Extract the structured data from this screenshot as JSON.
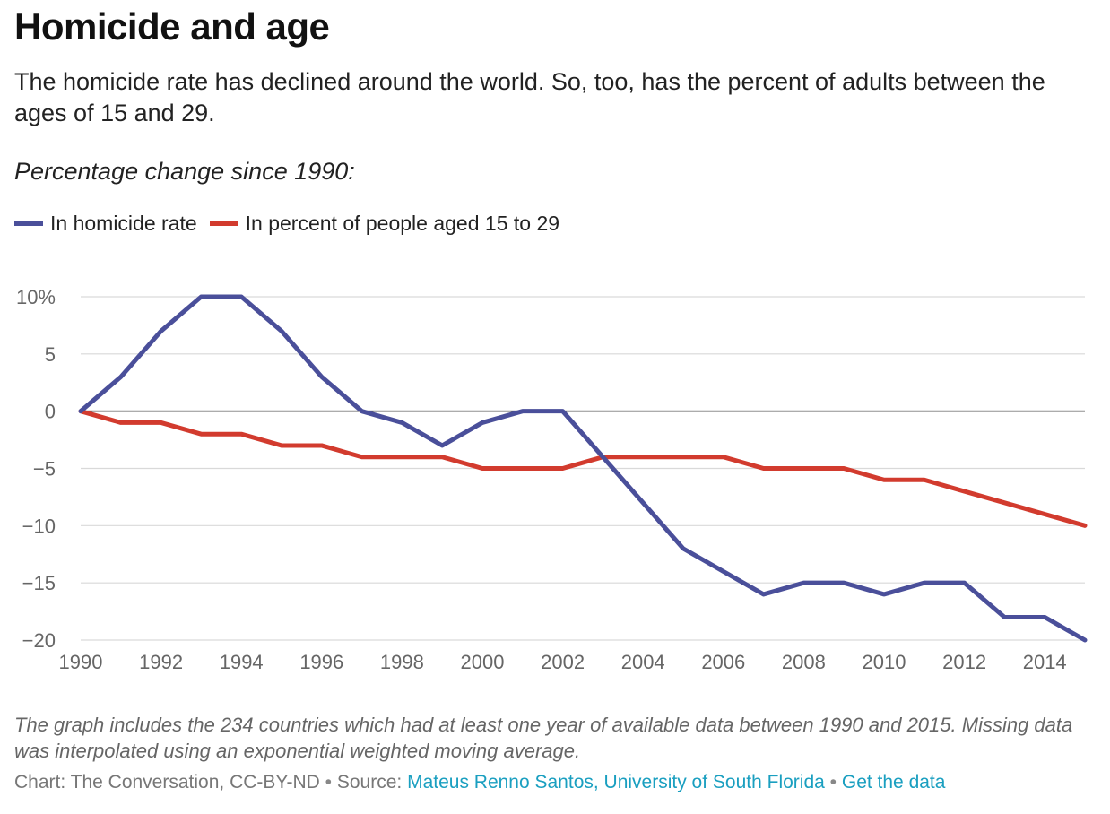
{
  "title": "Homicide and age",
  "subtitle": "The homicide rate has declined around the world. So, too, has the percent of adults between the ages of 15 and 29.",
  "lead": "Percentage change since 1990:",
  "legend": [
    {
      "label": "In homicide rate",
      "color": "#4a4f9a"
    },
    {
      "label": "In percent of people aged 15 to 29",
      "color": "#d23b2e"
    }
  ],
  "chart_data": {
    "type": "line",
    "x": [
      1990,
      1991,
      1992,
      1993,
      1994,
      1995,
      1996,
      1997,
      1998,
      1999,
      2000,
      2001,
      2002,
      2003,
      2004,
      2005,
      2006,
      2007,
      2008,
      2009,
      2010,
      2011,
      2012,
      2013,
      2014,
      2015
    ],
    "series": [
      {
        "name": "In homicide rate",
        "color": "#4a4f9a",
        "values": [
          0,
          3,
          7,
          10,
          10,
          7,
          3,
          0,
          -1,
          -3,
          -1,
          0,
          0,
          -4,
          -8,
          -12,
          -14,
          -16,
          -15,
          -15,
          -16,
          -15,
          -15,
          -18,
          -18,
          -20
        ]
      },
      {
        "name": "In percent of people aged 15 to 29",
        "color": "#d23b2e",
        "values": [
          0,
          -1,
          -1,
          -2,
          -2,
          -3,
          -3,
          -4,
          -4,
          -4,
          -5,
          -5,
          -5,
          -4,
          -4,
          -4,
          -4,
          -5,
          -5,
          -5,
          -6,
          -6,
          -7,
          -8,
          -9,
          -10
        ]
      }
    ],
    "x_ticks": [
      1990,
      1992,
      1994,
      1996,
      1998,
      2000,
      2002,
      2004,
      2006,
      2008,
      2010,
      2012,
      2014
    ],
    "x_tick_labels": [
      "1990",
      "1992",
      "1994",
      "1996",
      "1998",
      "2000",
      "2002",
      "2004",
      "2006",
      "2008",
      "2010",
      "2012",
      "2014"
    ],
    "y_ticks": [
      10,
      5,
      0,
      -5,
      -10,
      -15,
      -20
    ],
    "y_tick_labels": [
      "10%",
      "5",
      "0",
      "−5",
      "−10",
      "−15",
      "−20"
    ],
    "xlim": [
      1990,
      2015
    ],
    "ylim": [
      -20,
      10
    ],
    "grid": true,
    "zero_line": true,
    "legend_position": "top-left",
    "title": "Homicide and age",
    "xlabel": "",
    "ylabel": ""
  },
  "note": "The graph includes the 234 countries which had at least one year of available data between 1990 and 2015. Missing data was interpolated using an exponential weighted moving average.",
  "credit": {
    "prefix": "Chart: The Conversation, CC-BY-ND",
    "separator": "•",
    "source_label": "Source:",
    "source_link": "Mateus Renno Santos, University of South Florida",
    "data_link": "Get the data"
  },
  "colors": {
    "grid": "#d9d9d9",
    "zero_line": "#222222",
    "tick_text": "#666666",
    "link": "#1a9fc0"
  }
}
